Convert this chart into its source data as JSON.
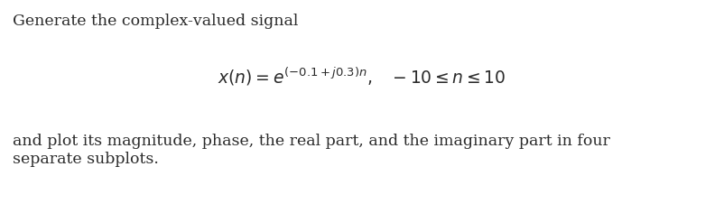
{
  "bg_color": "#ffffff",
  "text_color": "#2b2b2b",
  "line1": "Generate the complex-valued signal",
  "line1_fontsize": 12.5,
  "formula_fontsize": 13.5,
  "body_fontsize": 12.5,
  "line3a": "and plot its magnitude, phase, the real part, and the imaginary part in four",
  "line3b": "separate subplots."
}
